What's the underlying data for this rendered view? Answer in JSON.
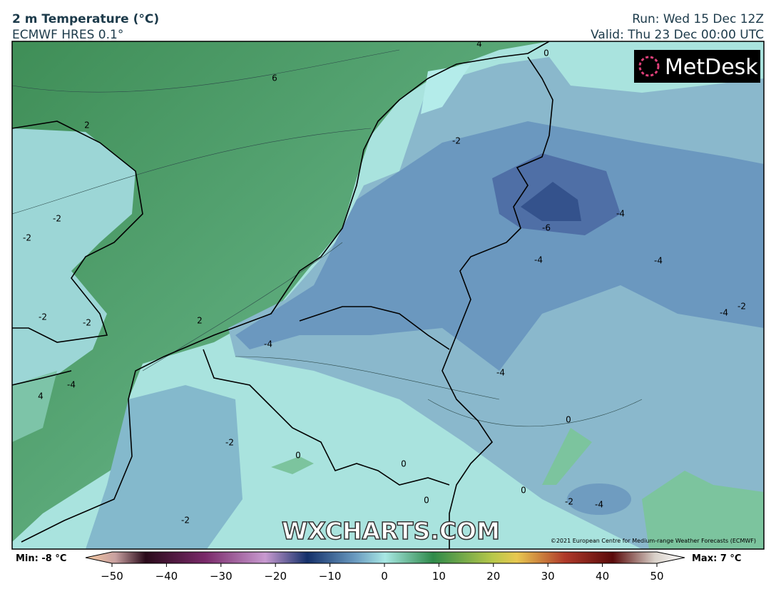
{
  "header": {
    "title": "2 m Temperature (°C)",
    "subtitle": "ECMWF HRES 0.1°",
    "run": "Run: Wed 15 Dec 12Z",
    "valid": "Valid: Thu 23 Dec 00:00 UTC"
  },
  "logo": "MetDesk",
  "map": {
    "contour_labels": [
      "4",
      "0",
      "6",
      "2",
      "-2",
      "-2",
      "-2",
      "-2",
      "-2",
      "-2",
      "2",
      "-4",
      "4",
      "-4",
      "-6",
      "-4",
      "-4",
      "-4",
      "-4",
      "-4",
      "0",
      "-2",
      "0",
      "0",
      "0",
      "-2",
      "-4",
      "-2",
      "0"
    ],
    "watermark": "WXCHARTS.COM",
    "copyright": "©2021 European Centre for Medium-range Weather Forecasts (ECMWF)"
  },
  "colorbar": {
    "min": "Min: -8 °C",
    "max": "Max: 7 °C",
    "ticks": [
      {
        "value": -50,
        "label": "−50"
      },
      {
        "value": -40,
        "label": "−40"
      },
      {
        "value": -30,
        "label": "−30"
      },
      {
        "value": -20,
        "label": "−20"
      },
      {
        "value": -10,
        "label": "−10"
      },
      0,
      10,
      20,
      30,
      40,
      50
    ]
  }
}
